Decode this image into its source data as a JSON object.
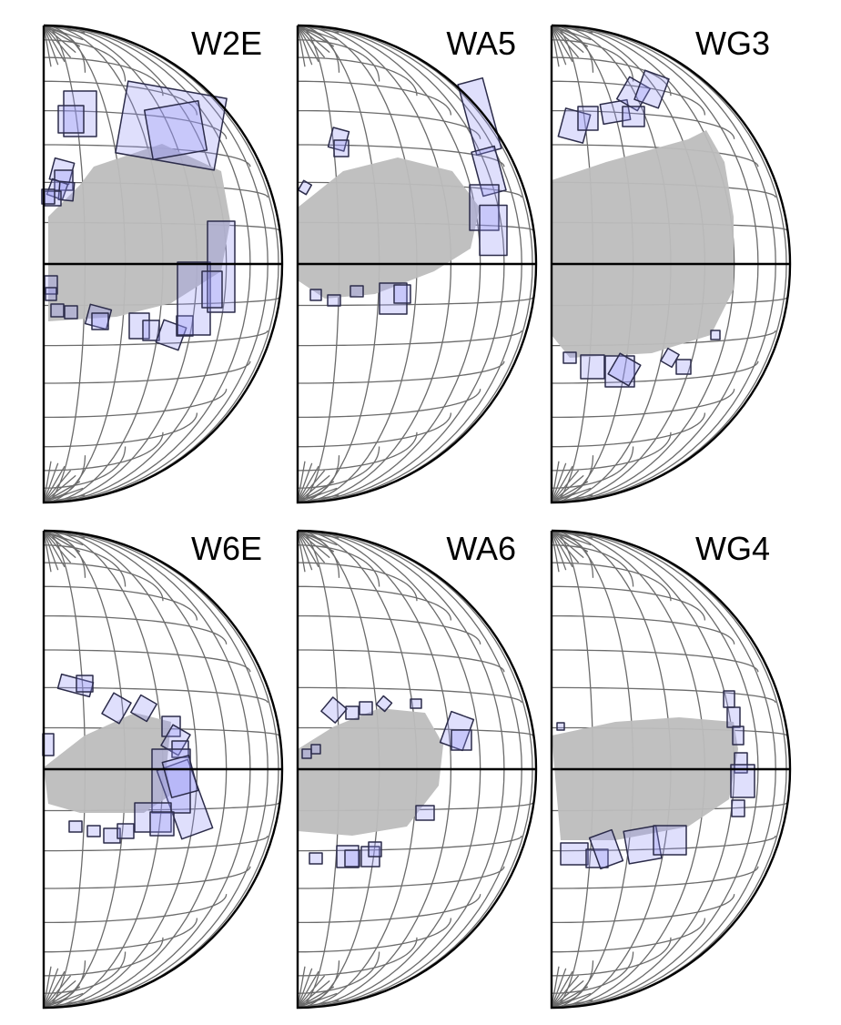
{
  "figure": {
    "colors": {
      "box_fill": "#9696f5",
      "box_stroke": "#2c2c4a",
      "region_fill": "#bdbdbd",
      "grid_stroke": "#6b6b6b",
      "outline_stroke": "#000000"
    },
    "panels": [
      {
        "label": "W2E"
      },
      {
        "label": "WA5"
      },
      {
        "label": "WG3"
      },
      {
        "label": "W6E"
      },
      {
        "label": "WA6"
      },
      {
        "label": "WG4"
      }
    ]
  }
}
